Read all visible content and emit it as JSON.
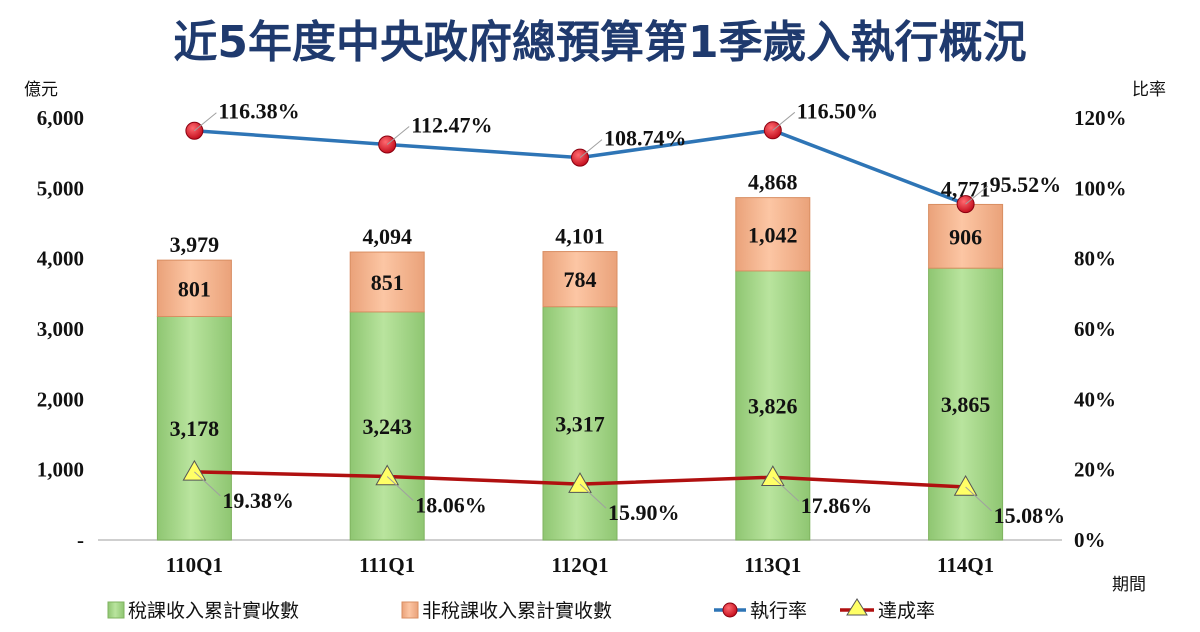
{
  "chart_data": {
    "type": "bar",
    "title": "近5年度中央政府總預算第1季歲入執行概況",
    "left_axis_unit": "億元",
    "right_axis_unit": "比率",
    "xlabel": "期間",
    "categories": [
      "110Q1",
      "111Q1",
      "112Q1",
      "113Q1",
      "114Q1"
    ],
    "ylim": [
      0,
      6000
    ],
    "y_ticks": [
      0,
      1000,
      2000,
      3000,
      4000,
      5000,
      6000
    ],
    "y_tick_labels": [
      "-",
      "1,000",
      "2,000",
      "3,000",
      "4,000",
      "5,000",
      "6,000"
    ],
    "y2lim": [
      0,
      120
    ],
    "y2_ticks": [
      0,
      20,
      40,
      60,
      80,
      100,
      120
    ],
    "y2_tick_labels": [
      "0%",
      "20%",
      "40%",
      "60%",
      "80%",
      "100%",
      "120%"
    ],
    "stacked": true,
    "series": [
      {
        "name": "稅課收入累計實收數",
        "type": "bar",
        "color": "#a9d88e",
        "values": [
          3178,
          3243,
          3317,
          3826,
          3865
        ],
        "labels": [
          "3,178",
          "3,243",
          "3,317",
          "3,826",
          "3,865"
        ]
      },
      {
        "name": "非稅課收入累計實收數",
        "type": "bar",
        "color": "#f4b48c",
        "values": [
          801,
          851,
          784,
          1042,
          906
        ],
        "labels": [
          "801",
          "851",
          "784",
          "1,042",
          "906"
        ]
      },
      {
        "name": "執行率",
        "type": "line",
        "axis": "right",
        "color": "#2e75b6",
        "marker_color": "#e0102a",
        "values": [
          116.38,
          112.47,
          108.74,
          116.5,
          95.52
        ],
        "labels": [
          "116.38%",
          "112.47%",
          "108.74%",
          "116.50%",
          "95.52%"
        ]
      },
      {
        "name": "達成率",
        "type": "line",
        "axis": "right",
        "color": "#b01010",
        "marker_color": "#ffff66",
        "values": [
          19.38,
          18.06,
          15.9,
          17.86,
          15.08
        ],
        "labels": [
          "19.38%",
          "18.06%",
          "15.90%",
          "17.86%",
          "15.08%"
        ]
      }
    ],
    "totals": [
      3979,
      4094,
      4101,
      4868,
      4771
    ],
    "total_labels": [
      "3,979",
      "4,094",
      "4,101",
      "4,868",
      "4,771"
    ],
    "legend_position": "bottom",
    "grid": false
  }
}
